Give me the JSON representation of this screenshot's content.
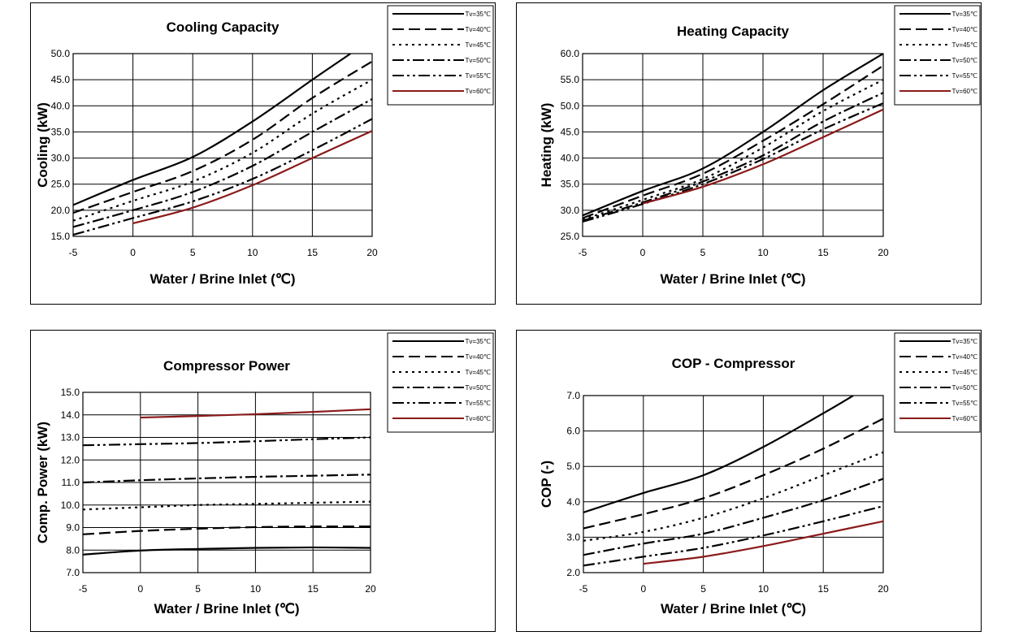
{
  "chart_data": [
    {
      "type": "line",
      "title": "Cooling Capacity",
      "xlabel": "Water / Brine Inlet (℃)",
      "ylabel": "Cooling (kW)",
      "xlim": [
        -5,
        20
      ],
      "ylim": [
        15,
        50
      ],
      "xticks": [
        "-5",
        "0",
        "5",
        "10",
        "15",
        "20"
      ],
      "yticks": [
        "15.0",
        "20.0",
        "25.0",
        "30.0",
        "35.0",
        "40.0",
        "45.0",
        "50.0"
      ],
      "grid": true,
      "legend_position": "top-right",
      "series": [
        {
          "name": "Tv=35℃",
          "x": [
            -5,
            0,
            5,
            10,
            15,
            18.2
          ],
          "y": [
            21,
            25.8,
            30.2,
            37,
            45,
            50
          ]
        },
        {
          "name": "Tv=40℃",
          "x": [
            -5,
            0,
            5,
            10,
            15,
            20
          ],
          "y": [
            19.5,
            23.5,
            27.5,
            33.5,
            41.5,
            48.5
          ]
        },
        {
          "name": "Tv=45℃",
          "x": [
            -5,
            0,
            5,
            10,
            15,
            20
          ],
          "y": [
            18,
            21.8,
            25.5,
            31,
            38.5,
            45
          ]
        },
        {
          "name": "Tv=50℃",
          "x": [
            -5,
            0,
            5,
            10,
            15,
            20
          ],
          "y": [
            16.8,
            20,
            23.5,
            28.5,
            35,
            41.3
          ]
        },
        {
          "name": "Tv=55℃",
          "x": [
            -5,
            0,
            5,
            10,
            15,
            20
          ],
          "y": [
            15.3,
            18.5,
            21.7,
            26,
            31.5,
            37.5
          ]
        },
        {
          "name": "Tv=60℃",
          "x": [
            0,
            5,
            10,
            15,
            20
          ],
          "y": [
            17.5,
            20.5,
            24.8,
            30,
            35.2
          ]
        }
      ]
    },
    {
      "type": "line",
      "title": "Heating Capacity",
      "xlabel": "Water / Brine Inlet (℃)",
      "ylabel": "Heating (kW)",
      "xlim": [
        -5,
        20
      ],
      "ylim": [
        25,
        60
      ],
      "xticks": [
        "-5",
        "0",
        "5",
        "10",
        "15",
        "20"
      ],
      "yticks": [
        "25.0",
        "30.0",
        "35.0",
        "40.0",
        "45.0",
        "50.0",
        "55.0",
        "60.0"
      ],
      "grid": true,
      "legend_position": "top-right",
      "series": [
        {
          "name": "Tv=35℃",
          "x": [
            -5,
            0,
            5,
            10,
            15,
            20
          ],
          "y": [
            29,
            33.7,
            38,
            45,
            53,
            60
          ]
        },
        {
          "name": "Tv=40℃",
          "x": [
            -5,
            0,
            5,
            10,
            15,
            20
          ],
          "y": [
            28.5,
            32.8,
            37,
            43.3,
            50.3,
            57.7
          ]
        },
        {
          "name": "Tv=45℃",
          "x": [
            -5,
            0,
            5,
            10,
            15,
            20
          ],
          "y": [
            28.2,
            32,
            36,
            42,
            49,
            55
          ]
        },
        {
          "name": "Tv=50℃",
          "x": [
            -5,
            0,
            5,
            10,
            15,
            20
          ],
          "y": [
            28,
            31.5,
            35.5,
            40.5,
            47,
            52.5
          ]
        },
        {
          "name": "Tv=55℃",
          "x": [
            -5,
            0,
            5,
            10,
            15,
            20
          ],
          "y": [
            27.8,
            31.2,
            35,
            39.8,
            45.5,
            50.5
          ]
        },
        {
          "name": "Tv=60℃",
          "x": [
            0,
            5,
            10,
            15,
            20
          ],
          "y": [
            31.3,
            34.5,
            38.8,
            44,
            49.3
          ]
        }
      ]
    },
    {
      "type": "line",
      "title": "Compressor Power",
      "xlabel": "Water / Brine Inlet (℃)",
      "ylabel": "Comp. Power (kW)",
      "xlim": [
        -5,
        20
      ],
      "ylim": [
        7,
        15
      ],
      "xticks": [
        "-5",
        "0",
        "5",
        "10",
        "15",
        "20"
      ],
      "yticks": [
        "7.0",
        "8.0",
        "9.0",
        "10.0",
        "11.0",
        "12.0",
        "13.0",
        "14.0",
        "15.0"
      ],
      "grid": true,
      "legend_position": "top-right",
      "series": [
        {
          "name": "Tv=35℃",
          "x": [
            -5,
            0,
            5,
            10,
            15,
            20
          ],
          "y": [
            7.8,
            7.98,
            8.05,
            8.1,
            8.12,
            8.1
          ]
        },
        {
          "name": "Tv=40℃",
          "x": [
            -5,
            0,
            5,
            10,
            15,
            20
          ],
          "y": [
            8.7,
            8.85,
            8.95,
            9.02,
            9.05,
            9.05
          ]
        },
        {
          "name": "Tv=45℃",
          "x": [
            -5,
            0,
            5,
            10,
            15,
            20
          ],
          "y": [
            9.8,
            9.9,
            10.0,
            10.05,
            10.1,
            10.15
          ]
        },
        {
          "name": "Tv=50℃",
          "x": [
            -5,
            0,
            5,
            10,
            15,
            20
          ],
          "y": [
            11.0,
            11.1,
            11.18,
            11.25,
            11.3,
            11.35
          ]
        },
        {
          "name": "Tv=55℃",
          "x": [
            -5,
            0,
            5,
            10,
            15,
            20
          ],
          "y": [
            12.65,
            12.7,
            12.75,
            12.83,
            12.92,
            13.0
          ]
        },
        {
          "name": "Tv=60℃",
          "x": [
            0,
            5,
            10,
            15,
            20
          ],
          "y": [
            13.88,
            13.95,
            14.03,
            14.13,
            14.25
          ]
        }
      ]
    },
    {
      "type": "line",
      "title": "COP - Compressor",
      "xlabel": "Water / Brine Inlet (℃)",
      "ylabel": "COP (-)",
      "xlim": [
        -5,
        20
      ],
      "ylim": [
        2,
        7
      ],
      "xticks": [
        "-5",
        "0",
        "5",
        "10",
        "15",
        "20"
      ],
      "yticks": [
        "2.0",
        "3.0",
        "4.0",
        "5.0",
        "6.0",
        "7.0"
      ],
      "grid": true,
      "legend_position": "top-right",
      "series": [
        {
          "name": "Tv=35℃",
          "x": [
            -5,
            0,
            5,
            10,
            15,
            17.5
          ],
          "y": [
            3.7,
            4.25,
            4.75,
            5.55,
            6.5,
            7.0
          ]
        },
        {
          "name": "Tv=40℃",
          "x": [
            -5,
            0,
            5,
            10,
            15,
            20
          ],
          "y": [
            3.25,
            3.65,
            4.1,
            4.75,
            5.5,
            6.35
          ]
        },
        {
          "name": "Tv=45℃",
          "x": [
            -5,
            0,
            5,
            10,
            15,
            20
          ],
          "y": [
            2.9,
            3.15,
            3.55,
            4.1,
            4.75,
            5.4
          ]
        },
        {
          "name": "Tv=50℃",
          "x": [
            -5,
            0,
            5,
            10,
            15,
            20
          ],
          "y": [
            2.5,
            2.82,
            3.1,
            3.55,
            4.05,
            4.65
          ]
        },
        {
          "name": "Tv=55℃",
          "x": [
            -5,
            0,
            5,
            10,
            15,
            20
          ],
          "y": [
            2.2,
            2.45,
            2.7,
            3.05,
            3.45,
            3.88
          ]
        },
        {
          "name": "Tv=60℃",
          "x": [
            0,
            5,
            10,
            15,
            20
          ],
          "y": [
            2.25,
            2.45,
            2.75,
            3.1,
            3.45
          ]
        }
      ]
    }
  ],
  "styles": {
    "series_colors": [
      "#000000",
      "#000000",
      "#000000",
      "#000000",
      "#000000",
      "#8b1a1a"
    ],
    "series_dashes": [
      "",
      "14,6",
      "3,5",
      "14,4,3,4",
      "14,4,3,4,3,4",
      ""
    ],
    "series_widths": [
      2.2,
      2.2,
      2.2,
      2.2,
      2.2,
      2.2
    ]
  }
}
